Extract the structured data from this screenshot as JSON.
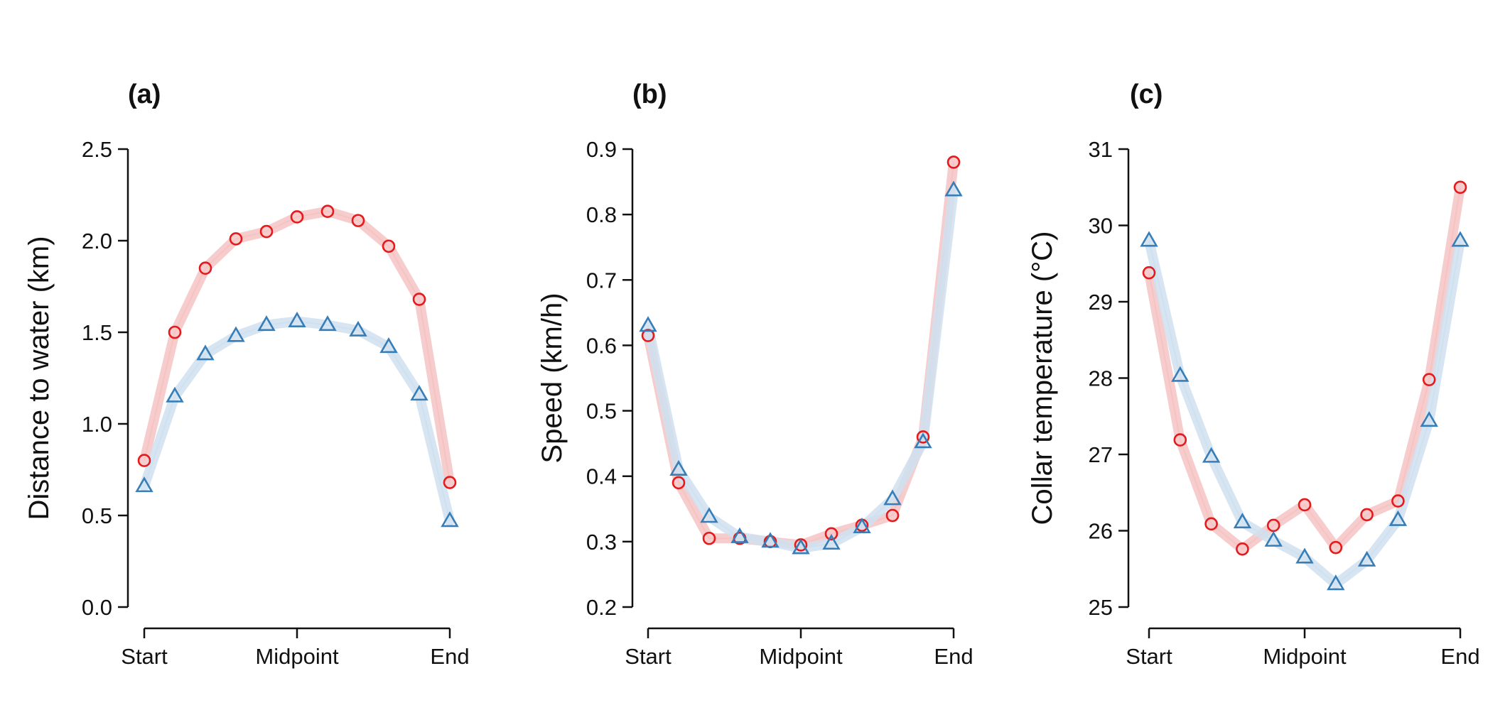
{
  "chart_data": [
    {
      "type": "line",
      "panel": "(a)",
      "ylabel": "Distance to water (km)",
      "xlabel": "",
      "ylim": [
        0.0,
        2.5
      ],
      "yticks": [
        "0.0",
        "0.5",
        "1.0",
        "1.5",
        "2.0",
        "2.5"
      ],
      "xtick_labels": [
        "Start",
        "Midpoint",
        "End"
      ],
      "grid": false,
      "series": [
        {
          "color": "#e41a1c",
          "band": "#f6c3c3",
          "marker": "circle",
          "values": [
            0.8,
            1.5,
            1.85,
            2.01,
            2.05,
            2.13,
            2.16,
            2.11,
            1.97,
            1.68,
            0.68
          ]
        },
        {
          "color": "#377eb8",
          "band": "#cfe0ef",
          "marker": "triangle",
          "values": [
            0.66,
            1.15,
            1.38,
            1.48,
            1.54,
            1.56,
            1.54,
            1.51,
            1.42,
            1.16,
            0.47
          ]
        }
      ]
    },
    {
      "type": "line",
      "panel": "(b)",
      "ylabel": "Speed (km/h)",
      "xlabel": "",
      "ylim": [
        0.2,
        0.9
      ],
      "yticks": [
        "0.2",
        "0.3",
        "0.4",
        "0.5",
        "0.6",
        "0.7",
        "0.8",
        "0.9"
      ],
      "xtick_labels": [
        "Start",
        "Midpoint",
        "End"
      ],
      "grid": false,
      "series": [
        {
          "color": "#e41a1c",
          "band": "#f6c3c3",
          "marker": "circle",
          "values": [
            0.615,
            0.39,
            0.305,
            0.305,
            0.3,
            0.295,
            0.312,
            0.325,
            0.34,
            0.46,
            0.88
          ]
        },
        {
          "color": "#377eb8",
          "band": "#cfe0ef",
          "marker": "triangle",
          "values": [
            0.63,
            0.41,
            0.338,
            0.307,
            0.3,
            0.29,
            0.297,
            0.322,
            0.365,
            0.452,
            0.837
          ]
        }
      ]
    },
    {
      "type": "line",
      "panel": "(c)",
      "ylabel": "Collar temperature (°C)",
      "xlabel": "",
      "ylim": [
        25,
        31
      ],
      "yticks": [
        "25",
        "26",
        "27",
        "28",
        "29",
        "30",
        "31"
      ],
      "xtick_labels": [
        "Start",
        "Midpoint",
        "End"
      ],
      "grid": false,
      "series": [
        {
          "color": "#e41a1c",
          "band": "#f6c3c3",
          "marker": "circle",
          "values": [
            29.38,
            27.19,
            26.09,
            25.76,
            26.07,
            26.34,
            25.78,
            26.21,
            26.39,
            27.98,
            30.5
          ]
        },
        {
          "color": "#377eb8",
          "band": "#cfe0ef",
          "marker": "triangle",
          "values": [
            29.8,
            28.03,
            26.97,
            26.11,
            25.87,
            25.65,
            25.3,
            25.61,
            26.14,
            27.44,
            29.8
          ]
        }
      ]
    }
  ]
}
